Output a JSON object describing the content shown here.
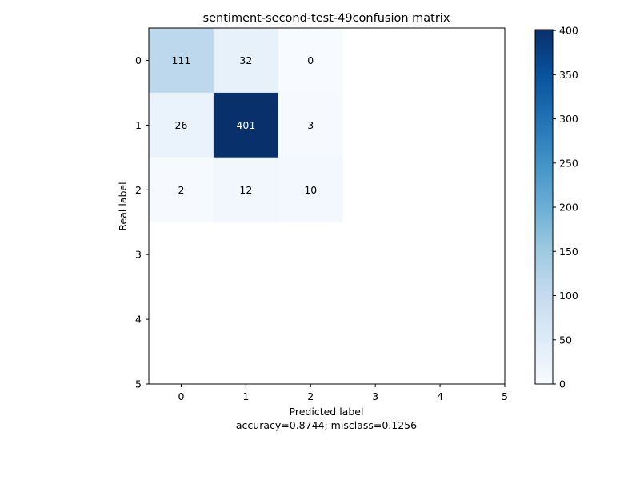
{
  "chart_data": {
    "type": "heatmap",
    "title": "sentiment-second-test-49confusion matrix",
    "xlabel": "Predicted label",
    "xlabel_note": "accuracy=0.8744; misclass=0.1256",
    "ylabel": "Real label",
    "x_ticks": [
      "0",
      "1",
      "2",
      "3",
      "4",
      "5"
    ],
    "y_ticks": [
      "0",
      "1",
      "2",
      "3",
      "4",
      "5"
    ],
    "x_range": [
      -0.5,
      5
    ],
    "y_range": [
      -0.5,
      5
    ],
    "matrix": [
      [
        111,
        32,
        0
      ],
      [
        26,
        401,
        3
      ],
      [
        2,
        12,
        10
      ]
    ],
    "colormap": "Blues",
    "colorbar": {
      "range": [
        0,
        401
      ],
      "ticks": [
        0,
        50,
        100,
        150,
        200,
        250,
        300,
        350,
        400
      ],
      "placement": "right"
    }
  }
}
